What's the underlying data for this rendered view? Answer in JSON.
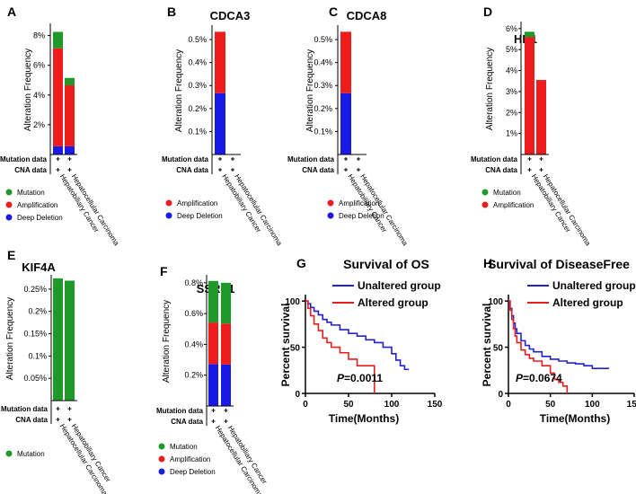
{
  "colors": {
    "mutation": "#1f9a2a",
    "amplification": "#ee1c1c",
    "deep_deletion": "#1a1ae6",
    "unaltered": "#2222cc",
    "altered": "#e81e1e"
  },
  "row_labels": {
    "mutation": "Mutation data",
    "cna": "CNA data"
  },
  "chart_data": [
    {
      "type": "bar",
      "panel": "A",
      "title": "",
      "ylabel": "Alteration Frequency",
      "yticks": [
        "2%",
        "4%",
        "6%",
        "8%"
      ],
      "ytick_values": [
        2,
        4,
        6,
        8
      ],
      "ylim": [
        0,
        8.7
      ],
      "categories": [
        "Hepatobiliary Cancer",
        "Hepatocellular Carcinoma"
      ],
      "stack_order": [
        "Deep Deletion",
        "Amplification",
        "Mutation"
      ],
      "series": [
        {
          "name": "Mutation",
          "color_key": "mutation",
          "values": [
            1.1,
            0.5
          ]
        },
        {
          "name": "Amplification",
          "color_key": "amplification",
          "values": [
            6.6,
            4.1
          ]
        },
        {
          "name": "Deep Deletion",
          "color_key": "deep_deletion",
          "values": [
            0.55,
            0.55
          ]
        }
      ],
      "legend": [
        "Mutation",
        "Amplification",
        "Deep Deletion"
      ]
    },
    {
      "type": "bar",
      "panel": "B",
      "title": "CDCA3",
      "ylabel": "Alteration Frequency",
      "yticks": [
        "0.1%",
        "0.2%",
        "0.3%",
        "0.4%",
        "0.5%"
      ],
      "ytick_values": [
        0.1,
        0.2,
        0.3,
        0.4,
        0.5
      ],
      "ylim": [
        0,
        0.555
      ],
      "categories": [
        "Hepatobiliary Cancer",
        "Hepatocellular Carcinoma"
      ],
      "stack_order": [
        "Deep Deletion",
        "Amplification",
        "Mutation"
      ],
      "series": [
        {
          "name": "Amplification",
          "color_key": "amplification",
          "values": [
            0.267,
            0
          ]
        },
        {
          "name": "Deep Deletion",
          "color_key": "deep_deletion",
          "values": [
            0.267,
            0
          ]
        }
      ],
      "legend": [
        "Amplification",
        "Deep Deletion"
      ]
    },
    {
      "type": "bar",
      "panel": "C",
      "title": "CDCA8",
      "ylabel": "Alteration Frequency",
      "yticks": [
        "0.1%",
        "0.2%",
        "0.3%",
        "0.4%",
        "0.5%"
      ],
      "ytick_values": [
        0.1,
        0.2,
        0.3,
        0.4,
        0.5
      ],
      "ylim": [
        0,
        0.555
      ],
      "categories": [
        "Hepatobiliary Cancer",
        "Hepatocellular Carcinoma"
      ],
      "stack_order": [
        "Deep Deletion",
        "Amplification",
        "Mutation"
      ],
      "series": [
        {
          "name": "Amplification",
          "color_key": "amplification",
          "values": [
            0.267,
            0
          ]
        },
        {
          "name": "Deep Deletion",
          "color_key": "deep_deletion",
          "values": [
            0.267,
            0
          ]
        }
      ],
      "legend": [
        "Amplification",
        "Deep Deletion"
      ]
    },
    {
      "type": "bar",
      "panel": "D",
      "title": "HN1",
      "ylabel": "Alteration Frequency",
      "yticks": [
        "1%",
        "2%",
        "3%",
        "4%",
        "5%",
        "6%"
      ],
      "ytick_values": [
        1,
        2,
        3,
        4,
        5,
        6
      ],
      "ylim": [
        0,
        6.25
      ],
      "categories": [
        "Hepatobiliary Cancer",
        "Hepatocellular Carcinoma"
      ],
      "stack_order": [
        "Deep Deletion",
        "Amplification",
        "Mutation"
      ],
      "series": [
        {
          "name": "Mutation",
          "color_key": "mutation",
          "values": [
            0.25,
            0
          ]
        },
        {
          "name": "Amplification",
          "color_key": "amplification",
          "values": [
            5.6,
            3.55
          ]
        }
      ],
      "legend": [
        "Mutation",
        "Amplification"
      ]
    },
    {
      "type": "bar",
      "panel": "E",
      "title": "KIF4A",
      "ylabel": "Alteration Frequency",
      "yticks": [
        "0.05%",
        "0.1%",
        "0.15%",
        "0.2%",
        "0.25%"
      ],
      "ytick_values": [
        0.05,
        0.1,
        0.15,
        0.2,
        0.25
      ],
      "ylim": [
        0,
        0.278
      ],
      "categories": [
        "Hepatocellular Carcinoma",
        "Hepatobiliary Cancer"
      ],
      "stack_order": [
        "Deep Deletion",
        "Amplification",
        "Mutation"
      ],
      "series": [
        {
          "name": "Mutation",
          "color_key": "mutation",
          "values": [
            0.274,
            0.269
          ]
        }
      ],
      "legend": [
        "Mutation"
      ]
    },
    {
      "type": "bar",
      "panel": "F",
      "title": "SSRP1",
      "ylabel": "Alteration Frequency",
      "yticks": [
        "0.2%",
        "0.4%",
        "0.6%",
        "0.8%"
      ],
      "ytick_values": [
        0.2,
        0.4,
        0.6,
        0.8
      ],
      "ylim": [
        0,
        0.84
      ],
      "categories": [
        "Hepatocellular Carcinoma",
        "Hepatobiliary Cancer"
      ],
      "stack_order": [
        "Deep Deletion",
        "Amplification",
        "Mutation"
      ],
      "series": [
        {
          "name": "Mutation",
          "color_key": "mutation",
          "values": [
            0.27,
            0.265
          ]
        },
        {
          "name": "Amplification",
          "color_key": "amplification",
          "values": [
            0.27,
            0.265
          ]
        },
        {
          "name": "Deep Deletion",
          "color_key": "deep_deletion",
          "values": [
            0.272,
            0.27
          ]
        }
      ],
      "legend": [
        "Mutation",
        "Amplification",
        "Deep Deletion"
      ]
    },
    {
      "type": "line",
      "panel": "G",
      "title": "Survival of OS",
      "xlabel": "Time(Months)",
      "ylabel": "Percent survival",
      "xlim": [
        0,
        150
      ],
      "ylim": [
        0,
        105
      ],
      "xticks": [
        0,
        50,
        100,
        150
      ],
      "yticks": [
        0,
        50,
        100
      ],
      "pvalue_prefix": "P",
      "pvalue_text": "=0.0011",
      "series": [
        {
          "name": "Unaltered group",
          "color_key": "unaltered",
          "x": [
            0,
            3,
            6,
            10,
            15,
            20,
            25,
            30,
            40,
            50,
            60,
            70,
            80,
            90,
            100,
            105,
            110,
            115,
            120
          ],
          "y": [
            100,
            97,
            93,
            89,
            85,
            80,
            77,
            74,
            69,
            65,
            62,
            58,
            55,
            50,
            43,
            36,
            30,
            26,
            26
          ]
        },
        {
          "name": "Altered group",
          "color_key": "altered",
          "x": [
            0,
            3,
            6,
            10,
            15,
            20,
            25,
            30,
            40,
            50,
            60,
            70,
            75,
            80,
            80
          ],
          "y": [
            100,
            92,
            84,
            75,
            68,
            60,
            55,
            50,
            44,
            37,
            30,
            30,
            30,
            30,
            0
          ]
        }
      ]
    },
    {
      "type": "line",
      "panel": "H",
      "title": "Survival of DiseaseFree",
      "xlabel": "Time(Months)",
      "ylabel": "Percent survival",
      "xlim": [
        0,
        150
      ],
      "ylim": [
        0,
        105
      ],
      "xticks": [
        0,
        50,
        100,
        150
      ],
      "yticks": [
        0,
        50,
        100
      ],
      "pvalue_prefix": "P",
      "pvalue_text": "=0.0674",
      "series": [
        {
          "name": "Unaltered group",
          "color_key": "unaltered",
          "x": [
            0,
            2,
            4,
            6,
            8,
            10,
            15,
            20,
            25,
            30,
            40,
            50,
            60,
            70,
            80,
            90,
            100,
            110,
            120
          ],
          "y": [
            100,
            92,
            84,
            76,
            70,
            65,
            57,
            52,
            48,
            45,
            40,
            37,
            35,
            33,
            32,
            30,
            27,
            27,
            27
          ]
        },
        {
          "name": "Altered group",
          "color_key": "altered",
          "x": [
            0,
            2,
            4,
            6,
            8,
            10,
            15,
            20,
            25,
            30,
            40,
            50,
            55,
            60,
            65,
            70,
            70
          ],
          "y": [
            100,
            90,
            80,
            70,
            62,
            55,
            47,
            42,
            38,
            35,
            30,
            22,
            15,
            12,
            8,
            8,
            0
          ]
        }
      ]
    }
  ]
}
